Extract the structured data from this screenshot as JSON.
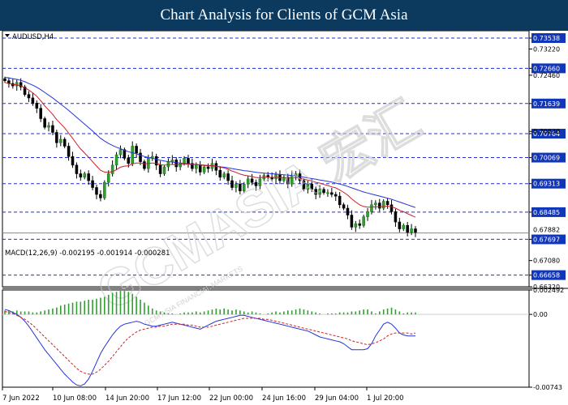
{
  "header": {
    "title": "Chart Analysis for Clients of GCM Asia"
  },
  "watermark": {
    "text": "GCMASIA 宏汇",
    "sub": "GCM ASIA FINANCIAL MARKETS"
  },
  "chart_data": [
    {
      "type": "candlestick",
      "symbol_label": "AUDUSD,H4",
      "ylim": [
        0.6632,
        0.7375
      ],
      "price_axis_ticks": [
        "0.73220",
        "0.72460",
        "0.70830",
        "0.67080",
        "0.66320"
      ],
      "level_lines": [
        {
          "label": "0.73538",
          "value": 0.73538
        },
        {
          "label": "0.72660",
          "value": 0.7266
        },
        {
          "label": "0.71639",
          "value": 0.71639
        },
        {
          "label": "0.70764",
          "value": 0.70764
        },
        {
          "label": "0.70069",
          "value": 0.70069
        },
        {
          "label": "0.69313",
          "value": 0.69313
        },
        {
          "label": "0.68485",
          "value": 0.68485
        },
        {
          "label": "0.67697",
          "value": 0.67697
        },
        {
          "label": "0.66658",
          "value": 0.66658
        }
      ],
      "current_price": {
        "label": "0.67882",
        "value": 0.67882
      },
      "closes": [
        0.723,
        0.7222,
        0.7215,
        0.7225,
        0.7212,
        0.719,
        0.718,
        0.7165,
        0.715,
        0.712,
        0.7095,
        0.71,
        0.708,
        0.705,
        0.706,
        0.704,
        0.701,
        0.6985,
        0.696,
        0.695,
        0.696,
        0.694,
        0.692,
        0.69,
        0.689,
        0.6935,
        0.696,
        0.6985,
        0.7015,
        0.703,
        0.7005,
        0.699,
        0.704,
        0.702,
        0.6995,
        0.6975,
        0.7005,
        0.701,
        0.6985,
        0.696,
        0.698,
        0.6995,
        0.7,
        0.698,
        0.699,
        0.7005,
        0.699,
        0.6975,
        0.6985,
        0.6965,
        0.698,
        0.6975,
        0.699,
        0.697,
        0.695,
        0.696,
        0.694,
        0.692,
        0.693,
        0.691,
        0.693,
        0.6945,
        0.6935,
        0.6925,
        0.6945,
        0.6955,
        0.695,
        0.6945,
        0.6958,
        0.694,
        0.695,
        0.693,
        0.6955,
        0.696,
        0.694,
        0.6915,
        0.693,
        0.6915,
        0.69,
        0.6915,
        0.6905,
        0.6905,
        0.69,
        0.6895,
        0.687,
        0.686,
        0.684,
        0.6805,
        0.6815,
        0.681,
        0.6835,
        0.685,
        0.687,
        0.6875,
        0.686,
        0.688,
        0.687,
        0.685,
        0.682,
        0.68,
        0.681,
        0.679,
        0.68,
        0.679
      ],
      "ma_fast": [
        0.7225,
        0.7222,
        0.7219,
        0.7218,
        0.7215,
        0.721,
        0.7203,
        0.7195,
        0.7185,
        0.7172,
        0.7157,
        0.7145,
        0.7132,
        0.7117,
        0.7105,
        0.7093,
        0.7078,
        0.7063,
        0.7047,
        0.7032,
        0.702,
        0.7008,
        0.6995,
        0.6982,
        0.697,
        0.6965,
        0.6964,
        0.6966,
        0.6972,
        0.6979,
        0.6982,
        0.6983,
        0.6989,
        0.6991,
        0.6991,
        0.6989,
        0.699,
        0.6991,
        0.699,
        0.6986,
        0.6985,
        0.6986,
        0.6987,
        0.6986,
        0.6986,
        0.6988,
        0.6988,
        0.6987,
        0.6987,
        0.6985,
        0.6984,
        0.6983,
        0.6984,
        0.6982,
        0.6979,
        0.6977,
        0.6973,
        0.6968,
        0.6964,
        0.6959,
        0.6956,
        0.6954,
        0.6952,
        0.6949,
        0.6949,
        0.695,
        0.695,
        0.6949,
        0.695,
        0.6949,
        0.6949,
        0.6947,
        0.6948,
        0.6949,
        0.6947,
        0.6944,
        0.6942,
        0.6939,
        0.6935,
        0.6933,
        0.6929,
        0.6926,
        0.6922,
        0.6919,
        0.6913,
        0.6906,
        0.6898,
        0.6887,
        0.6878,
        0.687,
        0.6865,
        0.6863,
        0.6863,
        0.6864,
        0.6864,
        0.6865,
        0.6866,
        0.6864,
        0.686,
        0.6854,
        0.685,
        0.6844,
        0.6839,
        0.6834
      ],
      "ma_slow": [
        0.724,
        0.7238,
        0.7236,
        0.7234,
        0.7231,
        0.7227,
        0.7222,
        0.7217,
        0.7211,
        0.7204,
        0.7196,
        0.7188,
        0.718,
        0.7171,
        0.7162,
        0.7153,
        0.7144,
        0.7134,
        0.7124,
        0.7114,
        0.7104,
        0.7094,
        0.7084,
        0.7073,
        0.7063,
        0.7055,
        0.7048,
        0.7042,
        0.7037,
        0.7033,
        0.7028,
        0.7024,
        0.7021,
        0.7018,
        0.7014,
        0.701,
        0.7007,
        0.7005,
        0.7002,
        0.6999,
        0.6997,
        0.6995,
        0.6994,
        0.6992,
        0.6991,
        0.699,
        0.6989,
        0.6988,
        0.6987,
        0.6986,
        0.6985,
        0.6984,
        0.6983,
        0.6982,
        0.698,
        0.6979,
        0.6977,
        0.6975,
        0.6973,
        0.6971,
        0.6969,
        0.6968,
        0.6966,
        0.6964,
        0.6963,
        0.6962,
        0.6961,
        0.696,
        0.6959,
        0.6958,
        0.6957,
        0.6956,
        0.6955,
        0.6954,
        0.6952,
        0.695,
        0.6948,
        0.6946,
        0.6944,
        0.6942,
        0.694,
        0.6938,
        0.6936,
        0.6933,
        0.693,
        0.6927,
        0.6923,
        0.6919,
        0.6915,
        0.6911,
        0.6907,
        0.6904,
        0.6901,
        0.6898,
        0.6895,
        0.6892,
        0.6889,
        0.6886,
        0.6882,
        0.6878,
        0.6874,
        0.687,
        0.6866,
        0.6862
      ],
      "x_labels": [
        "7 Jun 2022",
        "10 Jun 08:00",
        "14 Jun 20:00",
        "17 Jun 12:00",
        "22 Jun 00:00",
        "24 Jun 16:00",
        "29 Jun 04:00",
        "1 Jul 20:00"
      ]
    },
    {
      "type": "macd",
      "label": "MACD(12,26,9) -0.002195 -0.001914 -0.000281",
      "ylim": [
        -0.00743,
        0.002492
      ],
      "axis_ticks": [
        "0.002492",
        "0.00",
        "-0.00743"
      ],
      "histogram": [
        0.0004,
        0.0004,
        0.0003,
        0.0004,
        0.0003,
        0.0003,
        0.0003,
        0.0002,
        0.0002,
        0.0003,
        0.0004,
        0.0005,
        0.0006,
        0.0007,
        0.0009,
        0.001,
        0.0011,
        0.0012,
        0.0013,
        0.0013,
        0.0014,
        0.0015,
        0.0015,
        0.0016,
        0.0017,
        0.0018,
        0.002,
        0.0022,
        0.0023,
        0.0024,
        0.0024,
        0.0023,
        0.0021,
        0.0018,
        0.0015,
        0.0012,
        0.0009,
        0.0006,
        0.0004,
        0.0003,
        0.0002,
        0.0001,
        0.0001,
        0.0,
        0.0001,
        0.0002,
        0.0002,
        0.0002,
        0.0003,
        0.0002,
        0.0003,
        0.0004,
        0.0005,
        0.0006,
        0.0005,
        0.0006,
        0.0005,
        0.0004,
        0.0005,
        0.0004,
        0.0003,
        0.0002,
        0.0003,
        0.0002,
        0.0001,
        0.0,
        0.0001,
        0.0002,
        0.0003,
        0.0002,
        0.0003,
        0.0004,
        0.0004,
        0.0005,
        0.0006,
        0.0005,
        0.0004,
        0.0003,
        0.0002,
        0.0001,
        0.0,
        0.0001,
        0.0001,
        0.0001,
        0.0002,
        0.0002,
        0.0002,
        0.0003,
        0.0003,
        0.0004,
        0.0005,
        0.0005,
        0.0003,
        0.0001,
        0.0003,
        0.0005,
        0.0006,
        0.0007,
        0.0005,
        0.0003,
        0.0001,
        0.0002,
        0.0002,
        0.0002
      ],
      "macd": [
        0.0005,
        0.0004,
        0.0002,
        0.0,
        -0.0003,
        -0.0007,
        -0.0012,
        -0.0018,
        -0.0024,
        -0.003,
        -0.0036,
        -0.0041,
        -0.0046,
        -0.0051,
        -0.0056,
        -0.0061,
        -0.0065,
        -0.0069,
        -0.0072,
        -0.0073,
        -0.0071,
        -0.0066,
        -0.0058,
        -0.0049,
        -0.004,
        -0.0033,
        -0.0027,
        -0.0021,
        -0.0016,
        -0.0012,
        -0.001,
        -0.0009,
        -0.0008,
        -0.0007,
        -0.0008,
        -0.001,
        -0.0011,
        -0.0012,
        -0.0012,
        -0.0011,
        -0.001,
        -0.0009,
        -0.0008,
        -0.0009,
        -0.001,
        -0.0011,
        -0.0012,
        -0.0013,
        -0.0014,
        -0.0015,
        -0.0013,
        -0.0011,
        -0.0009,
        -0.0007,
        -0.0006,
        -0.0005,
        -0.0004,
        -0.0003,
        -0.0002,
        -0.0001,
        -0.0001,
        -0.0002,
        -0.0003,
        -0.0004,
        -0.0005,
        -0.0006,
        -0.0007,
        -0.0008,
        -0.0009,
        -0.001,
        -0.0011,
        -0.0012,
        -0.0013,
        -0.0014,
        -0.0015,
        -0.0016,
        -0.0017,
        -0.0019,
        -0.0021,
        -0.0023,
        -0.0024,
        -0.0025,
        -0.0026,
        -0.0027,
        -0.0028,
        -0.003,
        -0.0033,
        -0.0036,
        -0.0036,
        -0.0036,
        -0.0036,
        -0.0035,
        -0.003,
        -0.0022,
        -0.0016,
        -0.001,
        -0.0008,
        -0.001,
        -0.0014,
        -0.0019,
        -0.0021,
        -0.0022,
        -0.0022,
        -0.0022
      ],
      "signal": [
        0.0003,
        0.0002,
        0.0001,
        -0.0001,
        -0.0003,
        -0.0005,
        -0.0008,
        -0.0011,
        -0.0015,
        -0.0019,
        -0.0023,
        -0.0027,
        -0.0031,
        -0.0035,
        -0.0039,
        -0.0043,
        -0.0047,
        -0.0051,
        -0.0055,
        -0.0058,
        -0.006,
        -0.0061,
        -0.0061,
        -0.0059,
        -0.0056,
        -0.0052,
        -0.0048,
        -0.0043,
        -0.0038,
        -0.0033,
        -0.0028,
        -0.0024,
        -0.0021,
        -0.0018,
        -0.0016,
        -0.0015,
        -0.0014,
        -0.0013,
        -0.0013,
        -0.0012,
        -0.0012,
        -0.0011,
        -0.001,
        -0.001,
        -0.001,
        -0.001,
        -0.0011,
        -0.0011,
        -0.0012,
        -0.0013,
        -0.0013,
        -0.0013,
        -0.0012,
        -0.0011,
        -0.001,
        -0.0009,
        -0.0008,
        -0.0007,
        -0.0006,
        -0.0005,
        -0.0004,
        -0.0004,
        -0.0004,
        -0.0004,
        -0.0004,
        -0.0005,
        -0.0005,
        -0.0006,
        -0.0007,
        -0.0008,
        -0.0009,
        -0.001,
        -0.0011,
        -0.0012,
        -0.0013,
        -0.0014,
        -0.0015,
        -0.0016,
        -0.0017,
        -0.0018,
        -0.0019,
        -0.002,
        -0.0021,
        -0.0022,
        -0.0023,
        -0.0024,
        -0.0025,
        -0.0027,
        -0.0028,
        -0.0029,
        -0.003,
        -0.0031,
        -0.003,
        -0.0029,
        -0.0027,
        -0.0025,
        -0.0022,
        -0.002,
        -0.0019,
        -0.0019,
        -0.0019,
        -0.0019,
        -0.002,
        -0.0019
      ]
    }
  ]
}
